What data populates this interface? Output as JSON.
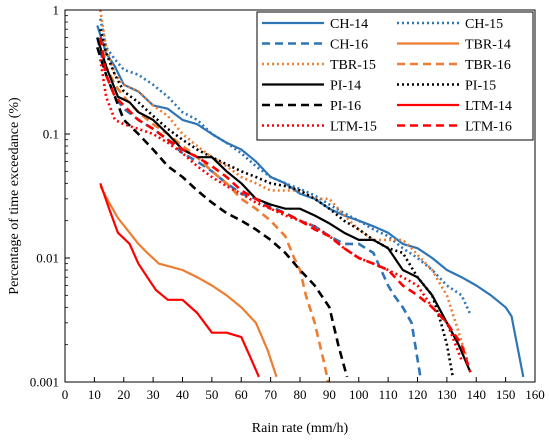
{
  "chart_data": {
    "type": "line",
    "xlabel": "Rain rate (mm/h)",
    "ylabel": "Percentage of time exceedance (%)",
    "xlim": [
      0,
      160
    ],
    "ylim": [
      0.001,
      1
    ],
    "yscale": "log",
    "xticks": [
      "0",
      "10",
      "20",
      "30",
      "40",
      "50",
      "60",
      "70",
      "80",
      "90",
      "100",
      "110",
      "120",
      "130",
      "140",
      "150",
      "160"
    ],
    "yticks": [
      {
        "value": 0.001,
        "label": "0.001"
      },
      {
        "value": 0.01,
        "label": "0.01"
      },
      {
        "value": 0.1,
        "label": "0.1"
      },
      {
        "value": 1,
        "label": "1"
      }
    ],
    "legend_position": "top-right",
    "grid": false,
    "series": [
      {
        "name": "CH-14",
        "color": "#2e75b6",
        "dash": "solid",
        "x": [
          11,
          14,
          17,
          20,
          25,
          30,
          35,
          40,
          45,
          50,
          55,
          60,
          65,
          70,
          75,
          80,
          85,
          90,
          95,
          100,
          105,
          110,
          115,
          120,
          125,
          130,
          135,
          140,
          145,
          150,
          152,
          156
        ],
        "y": [
          0.75,
          0.45,
          0.35,
          0.25,
          0.22,
          0.17,
          0.16,
          0.13,
          0.12,
          0.1,
          0.085,
          0.075,
          0.06,
          0.045,
          0.04,
          0.033,
          0.03,
          0.025,
          0.022,
          0.02,
          0.018,
          0.016,
          0.013,
          0.012,
          0.01,
          0.008,
          0.007,
          0.006,
          0.005,
          0.004,
          0.0034,
          0.0011
        ]
      },
      {
        "name": "CH-15",
        "color": "#2e75b6",
        "dash": "dot",
        "x": [
          12,
          14,
          17,
          20,
          25,
          30,
          35,
          40,
          45,
          50,
          55,
          60,
          65,
          70,
          75,
          80,
          85,
          90,
          95,
          100,
          105,
          110,
          115,
          120,
          125,
          130,
          135,
          138
        ],
        "y": [
          0.85,
          0.5,
          0.4,
          0.33,
          0.3,
          0.25,
          0.2,
          0.15,
          0.13,
          0.1,
          0.085,
          0.07,
          0.055,
          0.045,
          0.04,
          0.036,
          0.032,
          0.027,
          0.023,
          0.02,
          0.017,
          0.015,
          0.012,
          0.01,
          0.008,
          0.006,
          0.005,
          0.0035
        ]
      },
      {
        "name": "CH-16",
        "color": "#2e75b6",
        "dash": "dash",
        "x": [
          11,
          14,
          17,
          20,
          25,
          30,
          35,
          40,
          45,
          50,
          55,
          60,
          65,
          70,
          75,
          80,
          85,
          90,
          95,
          100,
          105,
          110,
          112,
          115,
          118,
          121
        ],
        "y": [
          0.6,
          0.3,
          0.2,
          0.16,
          0.13,
          0.11,
          0.09,
          0.07,
          0.06,
          0.05,
          0.04,
          0.033,
          0.03,
          0.026,
          0.023,
          0.02,
          0.018,
          0.015,
          0.013,
          0.013,
          0.011,
          0.006,
          0.005,
          0.004,
          0.003,
          0.0011
        ]
      },
      {
        "name": "TBR-14",
        "color": "#ed7d31",
        "dash": "solid",
        "x": [
          12,
          15,
          18,
          22,
          25,
          28,
          32,
          36,
          40,
          45,
          50,
          55,
          60,
          65,
          69,
          72
        ],
        "y": [
          0.038,
          0.028,
          0.021,
          0.016,
          0.013,
          0.011,
          0.009,
          0.0085,
          0.008,
          0.007,
          0.006,
          0.005,
          0.004,
          0.003,
          0.0018,
          0.0011
        ]
      },
      {
        "name": "TBR-15",
        "color": "#ed7d31",
        "dash": "dot",
        "x": [
          12,
          14,
          17,
          20,
          25,
          30,
          35,
          40,
          45,
          50,
          55,
          60,
          65,
          70,
          75,
          80,
          85,
          90,
          95,
          100,
          105,
          110,
          115,
          118,
          121,
          125,
          128,
          130,
          133,
          137
        ],
        "y": [
          1.0,
          0.5,
          0.3,
          0.25,
          0.22,
          0.17,
          0.14,
          0.1,
          0.08,
          0.065,
          0.055,
          0.045,
          0.04,
          0.035,
          0.035,
          0.035,
          0.03,
          0.03,
          0.022,
          0.017,
          0.014,
          0.014,
          0.014,
          0.012,
          0.01,
          0.008,
          0.006,
          0.005,
          0.003,
          0.0015
        ]
      },
      {
        "name": "TBR-16",
        "color": "#ed7d31",
        "dash": "dash",
        "x": [
          12,
          14,
          17,
          20,
          25,
          30,
          35,
          40,
          45,
          50,
          55,
          60,
          65,
          70,
          75,
          78,
          80,
          82,
          85,
          88,
          90
        ],
        "y": [
          0.6,
          0.35,
          0.25,
          0.2,
          0.15,
          0.12,
          0.1,
          0.08,
          0.065,
          0.05,
          0.04,
          0.03,
          0.025,
          0.02,
          0.015,
          0.01,
          0.008,
          0.005,
          0.003,
          0.0015,
          0.0009
        ]
      },
      {
        "name": "PI-14",
        "color": "#000000",
        "dash": "solid",
        "x": [
          11,
          14,
          18,
          22,
          25,
          30,
          35,
          40,
          45,
          50,
          55,
          60,
          65,
          70,
          75,
          80,
          85,
          90,
          95,
          100,
          105,
          110,
          115,
          120,
          125,
          130,
          134,
          138
        ],
        "y": [
          0.6,
          0.35,
          0.2,
          0.18,
          0.15,
          0.13,
          0.1,
          0.075,
          0.065,
          0.065,
          0.05,
          0.04,
          0.03,
          0.027,
          0.025,
          0.025,
          0.022,
          0.019,
          0.016,
          0.014,
          0.014,
          0.012,
          0.008,
          0.007,
          0.005,
          0.003,
          0.002,
          0.0012
        ]
      },
      {
        "name": "PI-15",
        "color": "#000000",
        "dash": "dot",
        "x": [
          12,
          14,
          17,
          20,
          25,
          30,
          35,
          40,
          45,
          50,
          55,
          60,
          65,
          70,
          75,
          80,
          85,
          90,
          95,
          100,
          105,
          110,
          115,
          120,
          125,
          128,
          130,
          132
        ],
        "y": [
          0.7,
          0.45,
          0.3,
          0.22,
          0.18,
          0.14,
          0.11,
          0.09,
          0.075,
          0.065,
          0.057,
          0.05,
          0.045,
          0.04,
          0.038,
          0.035,
          0.03,
          0.025,
          0.02,
          0.017,
          0.014,
          0.012,
          0.011,
          0.007,
          0.005,
          0.003,
          0.002,
          0.0011
        ]
      },
      {
        "name": "PI-16",
        "color": "#000000",
        "dash": "dash",
        "x": [
          11,
          14,
          17,
          20,
          25,
          30,
          35,
          40,
          45,
          50,
          55,
          60,
          65,
          70,
          75,
          80,
          85,
          90,
          93,
          96
        ],
        "y": [
          0.5,
          0.3,
          0.2,
          0.13,
          0.1,
          0.075,
          0.055,
          0.045,
          0.035,
          0.028,
          0.023,
          0.02,
          0.017,
          0.014,
          0.011,
          0.008,
          0.006,
          0.004,
          0.002,
          0.0011
        ]
      },
      {
        "name": "LTM-14",
        "color": "#ff0000",
        "dash": "solid",
        "x": [
          12,
          15,
          18,
          22,
          25,
          28,
          31,
          35,
          40,
          45,
          50,
          55,
          60,
          63,
          66
        ],
        "y": [
          0.04,
          0.025,
          0.016,
          0.013,
          0.009,
          0.007,
          0.0055,
          0.0046,
          0.0046,
          0.0036,
          0.0025,
          0.0025,
          0.0023,
          0.0016,
          0.0011
        ]
      },
      {
        "name": "LTM-15",
        "color": "#ff0000",
        "dash": "dot",
        "x": [
          12,
          14,
          17,
          20,
          25,
          30,
          35,
          40,
          45,
          50,
          55,
          60,
          65,
          70,
          75,
          80,
          85,
          90,
          95,
          100,
          105,
          110,
          115,
          120,
          125,
          130,
          135
        ],
        "y": [
          0.4,
          0.2,
          0.13,
          0.12,
          0.11,
          0.1,
          0.085,
          0.07,
          0.055,
          0.045,
          0.038,
          0.033,
          0.028,
          0.025,
          0.022,
          0.02,
          0.018,
          0.015,
          0.012,
          0.01,
          0.009,
          0.008,
          0.007,
          0.006,
          0.004,
          0.003,
          0.0015
        ]
      },
      {
        "name": "LTM-16",
        "color": "#ff0000",
        "dash": "dash",
        "x": [
          12,
          14,
          17,
          20,
          25,
          30,
          35,
          40,
          45,
          50,
          55,
          60,
          65,
          70,
          75,
          80,
          85,
          90,
          95,
          100,
          105,
          110,
          115,
          120,
          125,
          130,
          135,
          138
        ],
        "y": [
          0.6,
          0.3,
          0.2,
          0.17,
          0.13,
          0.11,
          0.09,
          0.075,
          0.065,
          0.055,
          0.045,
          0.035,
          0.03,
          0.025,
          0.023,
          0.02,
          0.017,
          0.015,
          0.012,
          0.01,
          0.009,
          0.008,
          0.006,
          0.005,
          0.004,
          0.003,
          0.002,
          0.0012
        ]
      }
    ]
  }
}
